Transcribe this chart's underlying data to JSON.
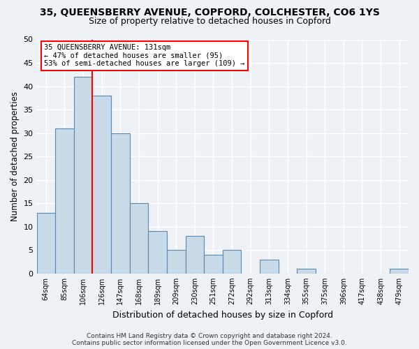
{
  "title1": "35, QUEENSBERRY AVENUE, COPFORD, COLCHESTER, CO6 1YS",
  "title2": "Size of property relative to detached houses in Copford",
  "xlabel": "Distribution of detached houses by size in Copford",
  "ylabel": "Number of detached properties",
  "footer1": "Contains HM Land Registry data © Crown copyright and database right 2024.",
  "footer2": "Contains public sector information licensed under the Open Government Licence v3.0.",
  "bins": [
    "64sqm",
    "85sqm",
    "106sqm",
    "126sqm",
    "147sqm",
    "168sqm",
    "189sqm",
    "209sqm",
    "230sqm",
    "251sqm",
    "272sqm",
    "292sqm",
    "313sqm",
    "334sqm",
    "355sqm",
    "375sqm",
    "396sqm",
    "417sqm",
    "438sqm",
    "479sqm"
  ],
  "values": [
    13,
    31,
    42,
    38,
    30,
    15,
    9,
    5,
    8,
    4,
    5,
    0,
    3,
    0,
    1,
    0,
    0,
    0,
    0,
    1
  ],
  "bar_color": "#c8d9e8",
  "bar_edge_color": "#5a8ab0",
  "vline_x": 3,
  "vline_color": "red",
  "annotation_text": "35 QUEENSBERRY AVENUE: 131sqm\n← 47% of detached houses are smaller (95)\n53% of semi-detached houses are larger (109) →",
  "annotation_box_color": "white",
  "annotation_box_edge_color": "red",
  "ylim": [
    0,
    50
  ],
  "yticks": [
    0,
    5,
    10,
    15,
    20,
    25,
    30,
    35,
    40,
    45,
    50
  ],
  "bg_color": "#eef2f7",
  "grid_color": "white"
}
